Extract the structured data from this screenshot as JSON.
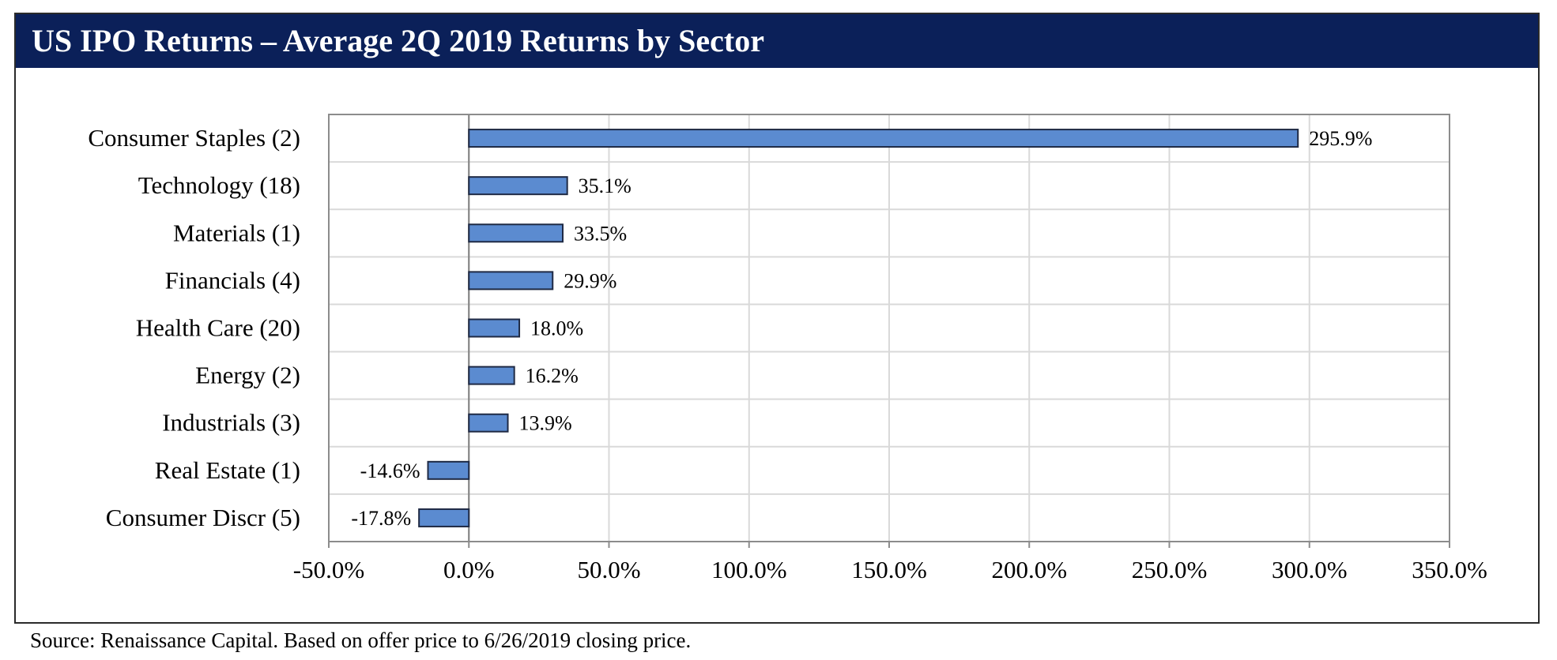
{
  "header": {
    "title": "US IPO Returns – Average 2Q 2019 Returns by Sector"
  },
  "footer": {
    "source": "Source: Renaissance Capital. Based on offer price to 6/26/2019 closing price."
  },
  "colors": {
    "title_bar": "#0b2059",
    "bar_fill": "#5b8bd0",
    "bar_stroke": "#1f2a44",
    "grid": "#d9d9d9"
  },
  "chart_data": {
    "type": "bar",
    "orientation": "horizontal",
    "title": "US IPO Returns – Average 2Q 2019 Returns by Sector",
    "categories": [
      "Consumer Staples (2)",
      "Technology (18)",
      "Materials (1)",
      "Financials (4)",
      "Health Care (20)",
      "Energy (2)",
      "Industrials (3)",
      "Real Estate (1)",
      "Consumer Discr (5)"
    ],
    "values": [
      295.9,
      35.1,
      33.5,
      29.9,
      18.0,
      16.2,
      13.9,
      -14.6,
      -17.8
    ],
    "data_labels": [
      "295.9%",
      "35.1%",
      "33.5%",
      "29.9%",
      "18.0%",
      "16.2%",
      "13.9%",
      "-14.6%",
      "-17.8%"
    ],
    "xlim": [
      -50,
      350
    ],
    "xticks": [
      -50,
      0,
      50,
      100,
      150,
      200,
      250,
      300,
      350
    ],
    "xtick_labels": [
      "-50.0%",
      "0.0%",
      "50.0%",
      "100.0%",
      "150.0%",
      "200.0%",
      "250.0%",
      "300.0%",
      "350.0%"
    ],
    "xlabel": "",
    "ylabel": "",
    "grid": true,
    "legend": "none"
  }
}
